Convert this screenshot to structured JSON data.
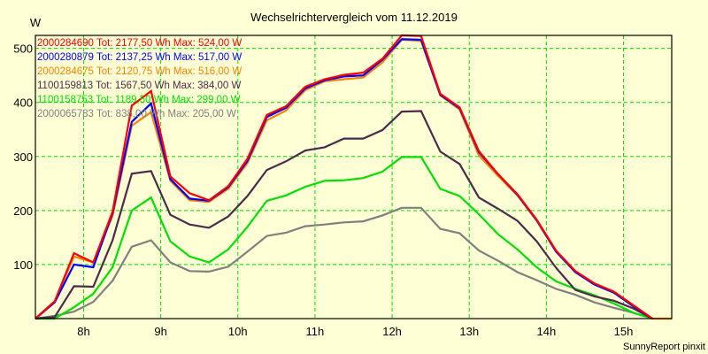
{
  "chart_data": {
    "type": "line",
    "title": "Wechselrichtervergleich vom 11.12.2019",
    "ylabel": "W",
    "xlabel": "",
    "ylim": [
      0,
      524
    ],
    "xlim_hours": [
      7.375,
      15.625
    ],
    "yticks": [
      100,
      200,
      300,
      400,
      500
    ],
    "ytick_labels": [
      "100",
      "200",
      "300",
      "400",
      "500"
    ],
    "xticks": [
      8,
      9,
      10,
      11,
      12,
      13,
      14,
      15
    ],
    "xtick_labels": [
      "8h",
      "9h",
      "10h",
      "11h",
      "12h",
      "13h",
      "14h",
      "15h"
    ],
    "grid": true,
    "legend_position": "top-left",
    "x_start_hours": 7.375,
    "x_step_hours": 0.25,
    "series": [
      {
        "name": "2000284690",
        "legend": "2000284690 Tot: 2177,50 Wh Max: 524,00 W",
        "color": "#ff0000",
        "values": [
          0,
          32,
          121,
          104,
          198,
          394,
          421,
          263,
          232,
          219,
          245,
          296,
          377,
          393,
          429,
          443,
          451,
          455,
          481,
          524,
          523,
          416,
          391,
          310,
          267,
          230,
          183,
          126,
          88,
          65,
          50,
          25,
          0
        ]
      },
      {
        "name": "2000280879",
        "legend": "2000280879 Tot: 2137,25 Wh Max: 517,00 W",
        "color": "#0000ff",
        "values": [
          0,
          30,
          100,
          95,
          195,
          364,
          398,
          258,
          222,
          218,
          243,
          292,
          373,
          390,
          426,
          441,
          448,
          450,
          479,
          517,
          516,
          414,
          389,
          308,
          267,
          229,
          182,
          124,
          86,
          63,
          48,
          23,
          0
        ]
      },
      {
        "name": "2000284675",
        "legend": "2000284675 Tot: 2120,75 Wh Max: 516,00 W",
        "color": "#ff8000",
        "values": [
          0,
          32,
          115,
          104,
          190,
          357,
          382,
          255,
          219,
          216,
          240,
          288,
          367,
          385,
          423,
          439,
          443,
          446,
          474,
          516,
          514,
          413,
          387,
          302,
          264,
          228,
          181,
          124,
          86,
          63,
          49,
          24,
          0,
          0
        ]
      },
      {
        "name": "1100159813",
        "legend": "1100159813 Tot: 1567,50 Wh Max: 384,00 W",
        "color": "#4b2a4b",
        "values": [
          0,
          3,
          60,
          59,
          145,
          268,
          273,
          192,
          174,
          168,
          189,
          227,
          275,
          291,
          311,
          317,
          333,
          333,
          349,
          383,
          384,
          309,
          286,
          224,
          203,
          181,
          143,
          94,
          53,
          41,
          33,
          19,
          0
        ]
      },
      {
        "name": "1100158753",
        "legend": "1100158753 Tot: 1189,50 Wh Max: 299,00 W",
        "color": "#00e000",
        "values": [
          0,
          0,
          21,
          46,
          95,
          200,
          224,
          143,
          115,
          104,
          128,
          170,
          218,
          228,
          244,
          255,
          256,
          260,
          272,
          299,
          299,
          240,
          227,
          193,
          156,
          128,
          95,
          69,
          55,
          43,
          28,
          11,
          0
        ]
      },
      {
        "name": "2000065783",
        "legend": "2000065783 Tot: 838,00 Wh Max: 205,00 W",
        "color": "#808080",
        "values": [
          0,
          5,
          13,
          31,
          70,
          133,
          145,
          104,
          88,
          87,
          96,
          124,
          153,
          159,
          171,
          174,
          178,
          180,
          191,
          205,
          205,
          166,
          158,
          126,
          107,
          86,
          71,
          55,
          44,
          30,
          20,
          11,
          0
        ]
      }
    ]
  },
  "footer": "SunnyReport pinxit",
  "colors": {
    "background": "#ffffd5",
    "grid": "#00dd00",
    "axis": "#000000"
  }
}
